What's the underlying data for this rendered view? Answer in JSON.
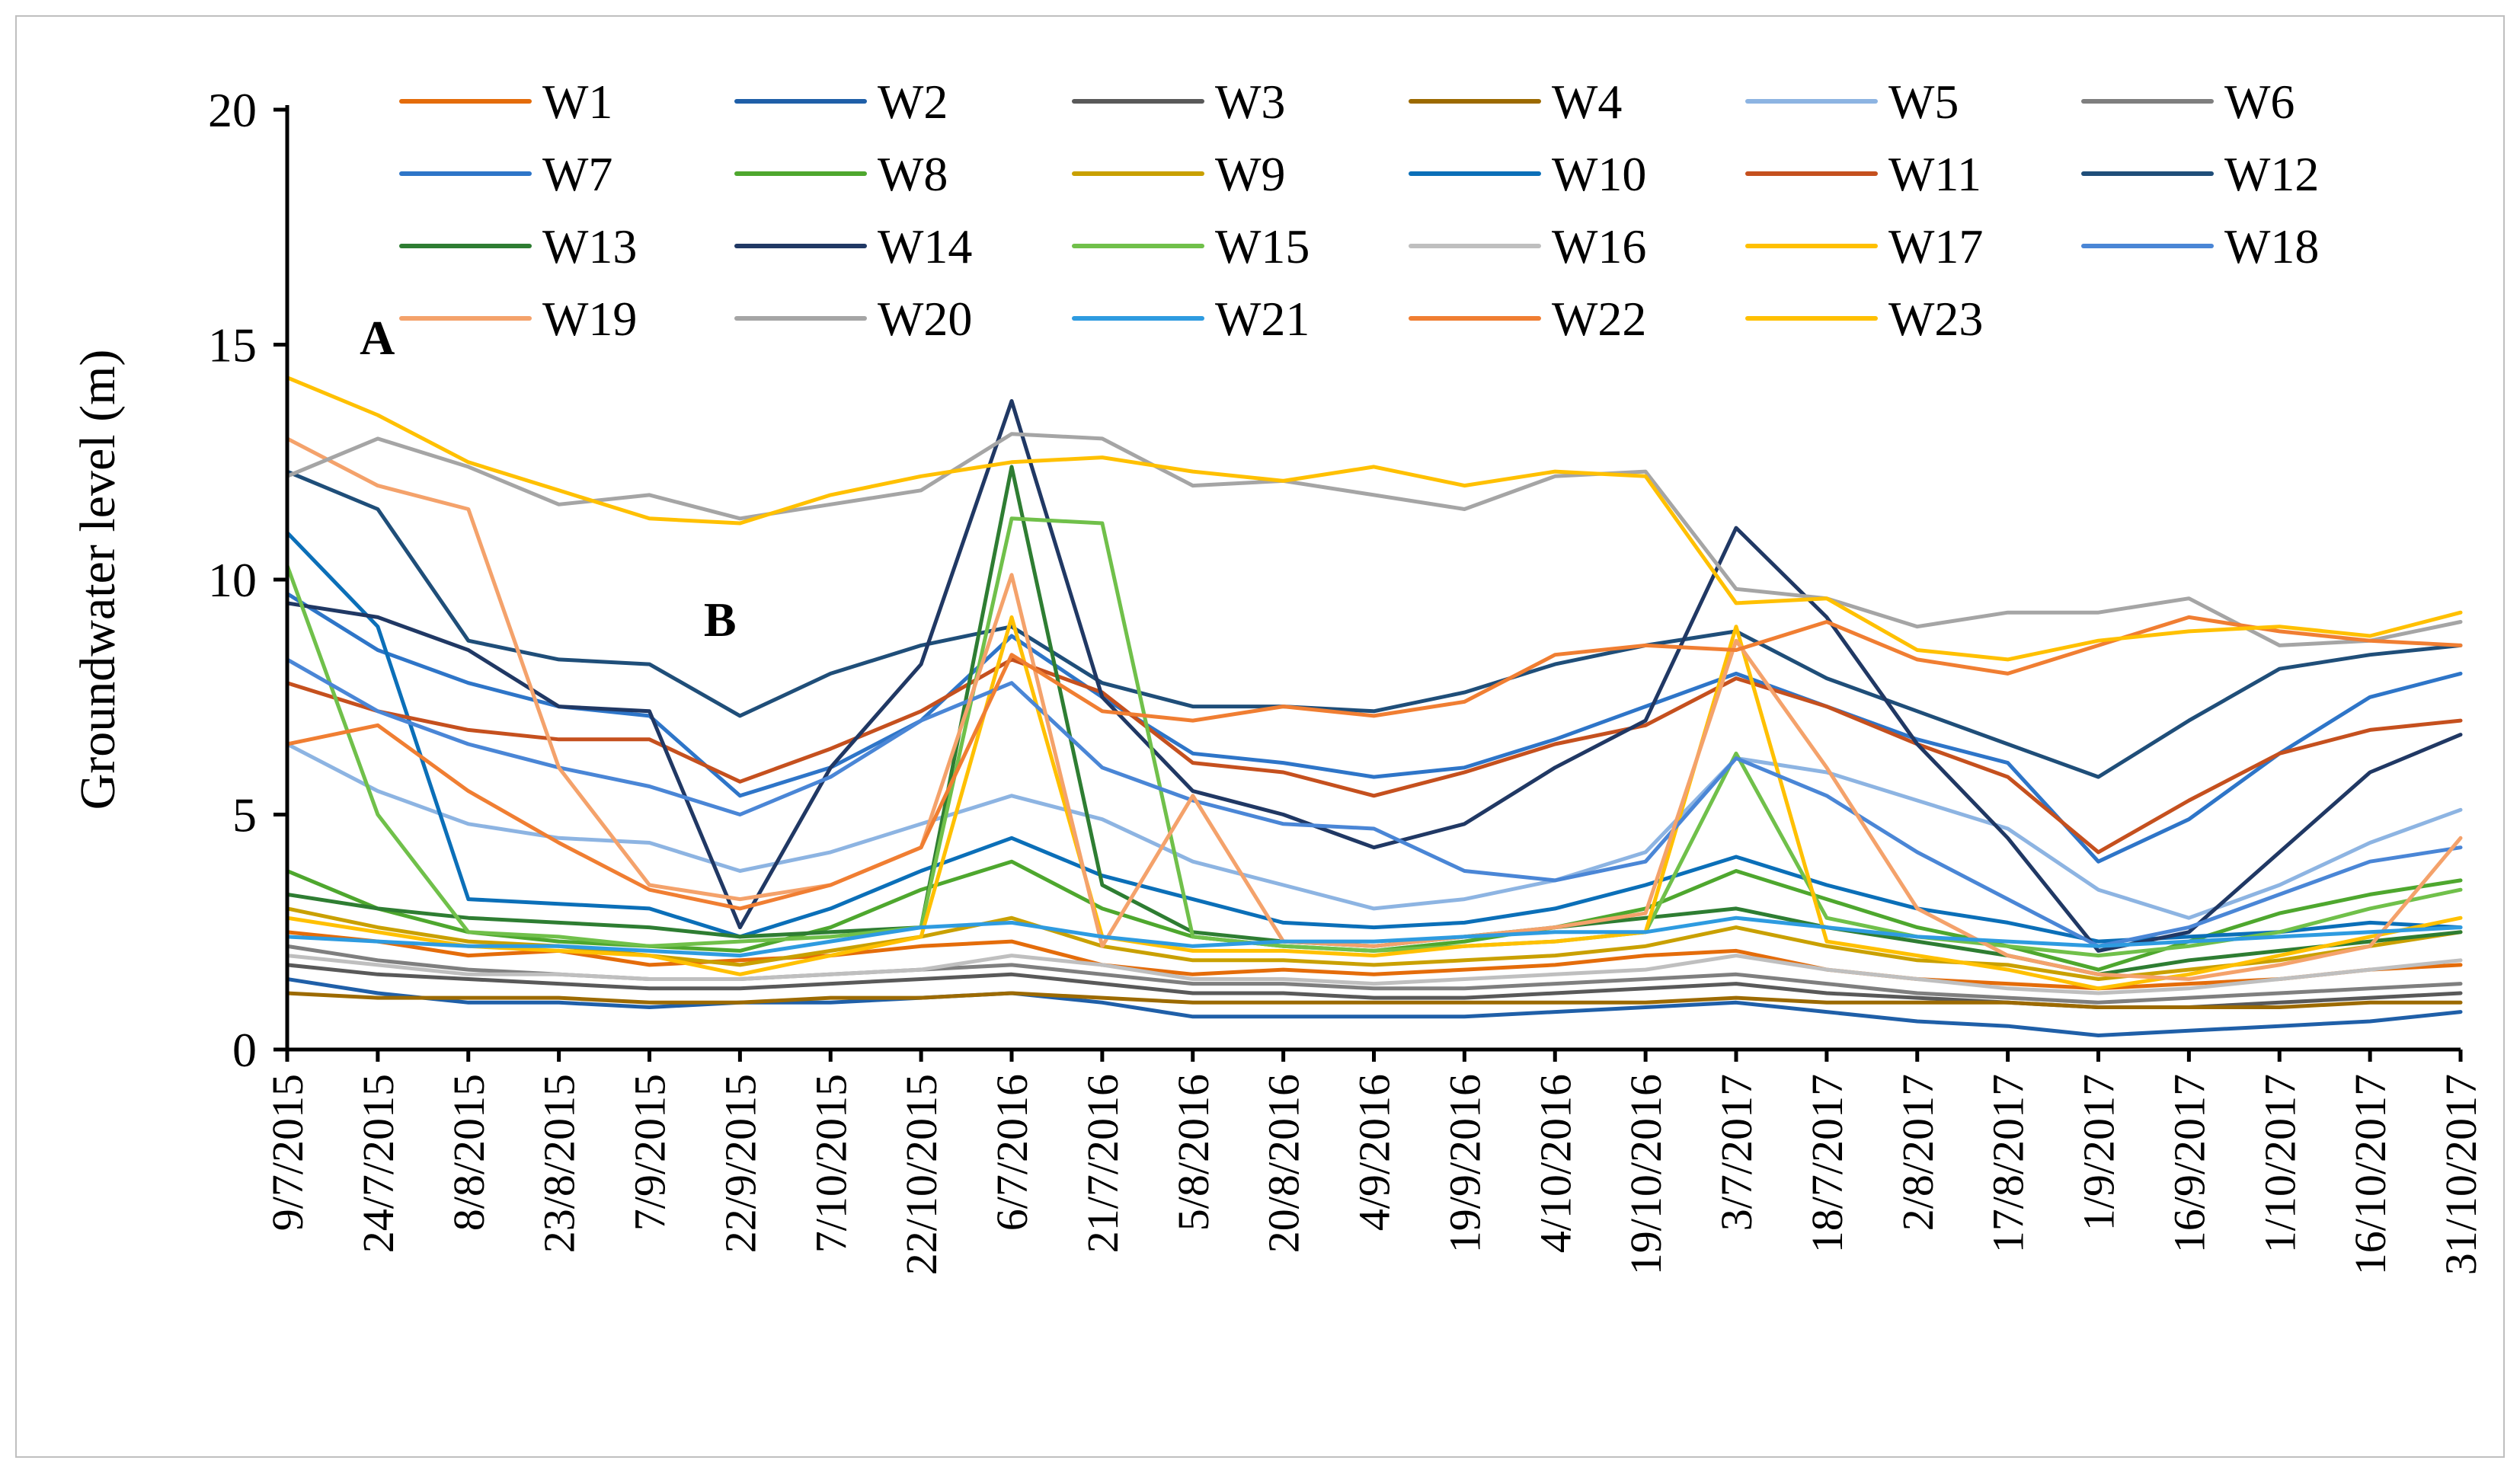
{
  "chart_data": {
    "type": "line",
    "title": "",
    "xlabel": "",
    "ylabel": "Groundwater level (m)",
    "ylim": [
      0,
      20
    ],
    "yticks": [
      0,
      5,
      10,
      15,
      20
    ],
    "categories": [
      "9/7/2015",
      "24/7/2015",
      "8/8/2015",
      "23/8/2015",
      "7/9/2015",
      "22/9/2015",
      "7/10/2015",
      "22/10/2015",
      "6/7/2016",
      "21/7/2016",
      "5/8/2016",
      "20/8/2016",
      "4/9/2016",
      "19/9/2016",
      "4/10/2016",
      "19/10/2016",
      "3/7/2017",
      "18/7/2017",
      "2/8/2017",
      "17/8/2017",
      "1/9/2017",
      "16/9/2017",
      "1/10/2017",
      "16/10/2017",
      "31/10/2017"
    ],
    "annotations": [
      {
        "text": "A",
        "category_index": 0.8,
        "y": 14.8
      },
      {
        "text": "B",
        "category_index": 4.6,
        "y": 8.8
      }
    ],
    "series": [
      {
        "name": "W1",
        "color": "#E46C0A",
        "values": [
          2.5,
          2.3,
          2.0,
          2.1,
          1.8,
          1.9,
          2.0,
          2.2,
          2.3,
          1.8,
          1.6,
          1.7,
          1.6,
          1.7,
          1.8,
          2.0,
          2.1,
          1.7,
          1.5,
          1.4,
          1.3,
          1.4,
          1.5,
          1.7,
          1.8
        ]
      },
      {
        "name": "W2",
        "color": "#1F5FA8",
        "values": [
          1.5,
          1.2,
          1.0,
          1.0,
          0.9,
          1.0,
          1.0,
          1.1,
          1.2,
          1.0,
          0.7,
          0.7,
          0.7,
          0.7,
          0.8,
          0.9,
          1.0,
          0.8,
          0.6,
          0.5,
          0.3,
          0.4,
          0.5,
          0.6,
          0.8
        ]
      },
      {
        "name": "W3",
        "color": "#595959",
        "values": [
          1.8,
          1.6,
          1.5,
          1.4,
          1.3,
          1.3,
          1.4,
          1.5,
          1.6,
          1.4,
          1.2,
          1.2,
          1.1,
          1.1,
          1.2,
          1.3,
          1.4,
          1.2,
          1.1,
          1.0,
          0.9,
          0.9,
          1.0,
          1.1,
          1.2
        ]
      },
      {
        "name": "W4",
        "color": "#9C6A00",
        "values": [
          1.2,
          1.1,
          1.1,
          1.1,
          1.0,
          1.0,
          1.1,
          1.1,
          1.2,
          1.1,
          1.0,
          1.0,
          1.0,
          1.0,
          1.0,
          1.0,
          1.1,
          1.0,
          1.0,
          1.0,
          0.9,
          0.9,
          0.9,
          1.0,
          1.0
        ]
      },
      {
        "name": "W5",
        "color": "#8DB4E2",
        "values": [
          6.5,
          5.5,
          4.8,
          4.5,
          4.4,
          3.8,
          4.2,
          4.8,
          5.4,
          4.9,
          4.0,
          3.5,
          3.0,
          3.2,
          3.6,
          4.2,
          6.2,
          5.9,
          5.3,
          4.7,
          3.4,
          2.8,
          3.5,
          4.4,
          5.1
        ]
      },
      {
        "name": "W6",
        "color": "#7F7F7F",
        "values": [
          2.2,
          1.9,
          1.7,
          1.6,
          1.5,
          1.5,
          1.6,
          1.7,
          1.8,
          1.6,
          1.4,
          1.4,
          1.3,
          1.3,
          1.4,
          1.5,
          1.6,
          1.4,
          1.2,
          1.1,
          1.0,
          1.1,
          1.2,
          1.3,
          1.4
        ]
      },
      {
        "name": "W7",
        "color": "#2E75C8",
        "values": [
          9.7,
          8.5,
          7.8,
          7.3,
          7.1,
          5.4,
          6.0,
          7.0,
          8.8,
          7.5,
          6.3,
          6.1,
          5.8,
          6.0,
          6.6,
          7.3,
          8.0,
          7.3,
          6.6,
          6.1,
          4.0,
          4.9,
          6.3,
          7.5,
          8.0
        ]
      },
      {
        "name": "W8",
        "color": "#4EA72E",
        "values": [
          3.8,
          3.0,
          2.5,
          2.3,
          2.2,
          2.1,
          2.6,
          3.4,
          4.0,
          3.0,
          2.4,
          2.2,
          2.1,
          2.3,
          2.6,
          3.0,
          3.8,
          3.2,
          2.6,
          2.2,
          1.7,
          2.3,
          2.9,
          3.3,
          3.6
        ]
      },
      {
        "name": "W9",
        "color": "#C9A000",
        "values": [
          3.0,
          2.6,
          2.3,
          2.2,
          2.0,
          1.8,
          2.1,
          2.4,
          2.8,
          2.2,
          1.9,
          1.9,
          1.8,
          1.9,
          2.0,
          2.2,
          2.6,
          2.2,
          1.9,
          1.8,
          1.5,
          1.7,
          1.9,
          2.2,
          2.5
        ]
      },
      {
        "name": "W10",
        "color": "#0B6FB8",
        "values": [
          11.0,
          9.0,
          3.2,
          3.1,
          3.0,
          2.4,
          3.0,
          3.8,
          4.5,
          3.7,
          3.2,
          2.7,
          2.6,
          2.7,
          3.0,
          3.5,
          4.1,
          3.5,
          3.0,
          2.7,
          2.3,
          2.4,
          2.5,
          2.7,
          2.6
        ]
      },
      {
        "name": "W11",
        "color": "#C5501E",
        "values": [
          7.8,
          7.2,
          6.8,
          6.6,
          6.6,
          5.7,
          6.4,
          7.2,
          8.3,
          7.6,
          6.1,
          5.9,
          5.4,
          5.9,
          6.5,
          6.9,
          7.9,
          7.3,
          6.5,
          5.8,
          4.2,
          5.3,
          6.3,
          6.8,
          7.0
        ]
      },
      {
        "name": "W12",
        "color": "#1F4E79",
        "values": [
          12.3,
          11.5,
          8.7,
          8.3,
          8.2,
          7.1,
          8.0,
          8.6,
          9.0,
          7.8,
          7.3,
          7.3,
          7.2,
          7.6,
          8.2,
          8.6,
          8.9,
          7.9,
          7.2,
          6.5,
          5.8,
          7.0,
          8.1,
          8.4,
          8.6
        ]
      },
      {
        "name": "W13",
        "color": "#2E7D32",
        "values": [
          3.3,
          3.0,
          2.8,
          2.7,
          2.6,
          2.4,
          2.5,
          2.6,
          12.4,
          3.5,
          2.5,
          2.3,
          2.2,
          2.4,
          2.6,
          2.8,
          3.0,
          2.6,
          2.3,
          2.0,
          1.6,
          1.9,
          2.1,
          2.3,
          2.5
        ]
      },
      {
        "name": "W14",
        "color": "#203864",
        "values": [
          9.5,
          9.2,
          8.5,
          7.3,
          7.2,
          2.6,
          6.0,
          8.2,
          13.8,
          7.5,
          5.5,
          5.0,
          4.3,
          4.8,
          6.0,
          7.0,
          11.1,
          9.2,
          6.5,
          4.5,
          2.1,
          2.5,
          4.2,
          5.9,
          6.7
        ]
      },
      {
        "name": "W15",
        "color": "#70C04A",
        "values": [
          10.3,
          5.0,
          2.5,
          2.4,
          2.2,
          2.3,
          2.4,
          2.6,
          11.3,
          11.2,
          2.4,
          2.2,
          2.1,
          2.2,
          2.3,
          2.5,
          6.3,
          2.8,
          2.4,
          2.2,
          2.0,
          2.2,
          2.5,
          3.0,
          3.4
        ]
      },
      {
        "name": "W16",
        "color": "#BFBFBF",
        "values": [
          2.0,
          1.8,
          1.6,
          1.6,
          1.5,
          1.5,
          1.6,
          1.7,
          2.0,
          1.8,
          1.5,
          1.5,
          1.4,
          1.5,
          1.6,
          1.7,
          2.0,
          1.7,
          1.5,
          1.3,
          1.2,
          1.3,
          1.5,
          1.7,
          1.9
        ]
      },
      {
        "name": "W17",
        "color": "#FFC000",
        "values": [
          2.8,
          2.5,
          2.2,
          2.1,
          2.0,
          1.6,
          2.0,
          2.4,
          9.2,
          2.4,
          2.1,
          2.1,
          2.0,
          2.2,
          2.3,
          2.5,
          9.0,
          2.3,
          2.0,
          1.7,
          1.3,
          1.6,
          2.0,
          2.4,
          2.8
        ]
      },
      {
        "name": "W18",
        "color": "#4A86D6",
        "values": [
          8.3,
          7.2,
          6.5,
          6.0,
          5.6,
          5.0,
          5.8,
          7.0,
          7.8,
          6.0,
          5.3,
          4.8,
          4.7,
          3.8,
          3.6,
          4.0,
          6.2,
          5.4,
          4.2,
          3.2,
          2.2,
          2.6,
          3.3,
          4.0,
          4.3
        ]
      },
      {
        "name": "W19",
        "color": "#F4A26B",
        "values": [
          13.0,
          12.0,
          11.5,
          6.0,
          3.5,
          3.2,
          3.5,
          4.3,
          10.1,
          2.2,
          5.4,
          2.3,
          2.2,
          2.4,
          2.6,
          2.9,
          8.7,
          6.0,
          3.0,
          2.0,
          1.6,
          1.5,
          1.8,
          2.2,
          4.5
        ]
      },
      {
        "name": "W20",
        "color": "#A5A5A5",
        "values": [
          12.2,
          13.0,
          12.4,
          11.6,
          11.8,
          11.3,
          11.6,
          11.9,
          13.1,
          13.0,
          12.0,
          12.1,
          11.8,
          11.5,
          12.2,
          12.3,
          9.8,
          9.6,
          9.0,
          9.3,
          9.3,
          9.6,
          8.6,
          8.7,
          9.1
        ]
      },
      {
        "name": "W21",
        "color": "#2E9BE0",
        "values": [
          2.4,
          2.3,
          2.2,
          2.2,
          2.1,
          2.0,
          2.3,
          2.6,
          2.7,
          2.4,
          2.2,
          2.3,
          2.3,
          2.4,
          2.5,
          2.5,
          2.8,
          2.6,
          2.4,
          2.3,
          2.2,
          2.3,
          2.4,
          2.5,
          2.6
        ]
      },
      {
        "name": "W22",
        "color": "#F07E32",
        "values": [
          6.5,
          6.9,
          5.5,
          4.4,
          3.4,
          3.0,
          3.5,
          4.3,
          8.4,
          7.2,
          7.0,
          7.3,
          7.1,
          7.4,
          8.4,
          8.6,
          8.5,
          9.1,
          8.3,
          8.0,
          8.6,
          9.2,
          8.9,
          8.7,
          8.6
        ]
      },
      {
        "name": "W23",
        "color": "#FFC000",
        "values": [
          14.3,
          13.5,
          12.5,
          11.9,
          11.3,
          11.2,
          11.8,
          12.2,
          12.5,
          12.6,
          12.3,
          12.1,
          12.4,
          12.0,
          12.3,
          12.2,
          9.5,
          9.6,
          8.5,
          8.3,
          8.7,
          8.9,
          9.0,
          8.8,
          9.3
        ]
      }
    ]
  }
}
